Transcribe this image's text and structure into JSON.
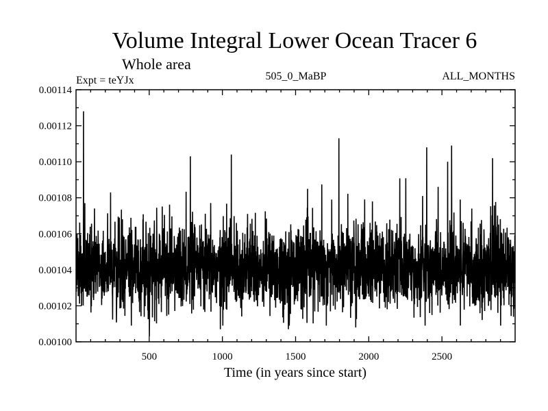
{
  "chart_data": {
    "type": "line",
    "title": "Volume Integral Lower Ocean Tracer 6",
    "subtitle": "Whole area",
    "experiment_label": "Expt = teYJx",
    "run_label": "505_0_MaBP",
    "period_label": "ALL_MONTHS",
    "xlabel": "Time (in years since start)",
    "ylabel": "",
    "xlim": [
      0,
      3000
    ],
    "ylim": [
      0.001,
      0.00114
    ],
    "x_ticks": [
      500,
      1000,
      1500,
      2000,
      2500
    ],
    "x_tick_labels": [
      "500",
      "1000",
      "1500",
      "2000",
      "2500"
    ],
    "y_ticks": [
      0.001,
      0.00102,
      0.00104,
      0.00106,
      0.00108,
      0.0011,
      0.00112,
      0.00114
    ],
    "y_tick_labels": [
      "0.00100",
      "0.00102",
      "0.00104",
      "0.00106",
      "0.00108",
      "0.00110",
      "0.00112",
      "0.00114"
    ],
    "series": [
      {
        "name": "Tracer 6",
        "color": "#000000",
        "mean": 0.001041,
        "noise_std": 1.15e-05,
        "n_points": 3000,
        "peaks": [
          {
            "x": 50,
            "y": 0.001128
          },
          {
            "x": 235,
            "y": 0.001083
          },
          {
            "x": 780,
            "y": 0.001103
          },
          {
            "x": 1060,
            "y": 0.001104
          },
          {
            "x": 1795,
            "y": 0.001113
          },
          {
            "x": 2395,
            "y": 0.001108
          },
          {
            "x": 2565,
            "y": 0.001109
          },
          {
            "x": 2845,
            "y": 0.001102
          }
        ],
        "troughs": [
          {
            "x": 500,
            "y": 0.001003
          },
          {
            "x": 985,
            "y": 0.001007
          },
          {
            "x": 1450,
            "y": 0.001007
          },
          {
            "x": 1910,
            "y": 0.001008
          }
        ]
      }
    ]
  }
}
